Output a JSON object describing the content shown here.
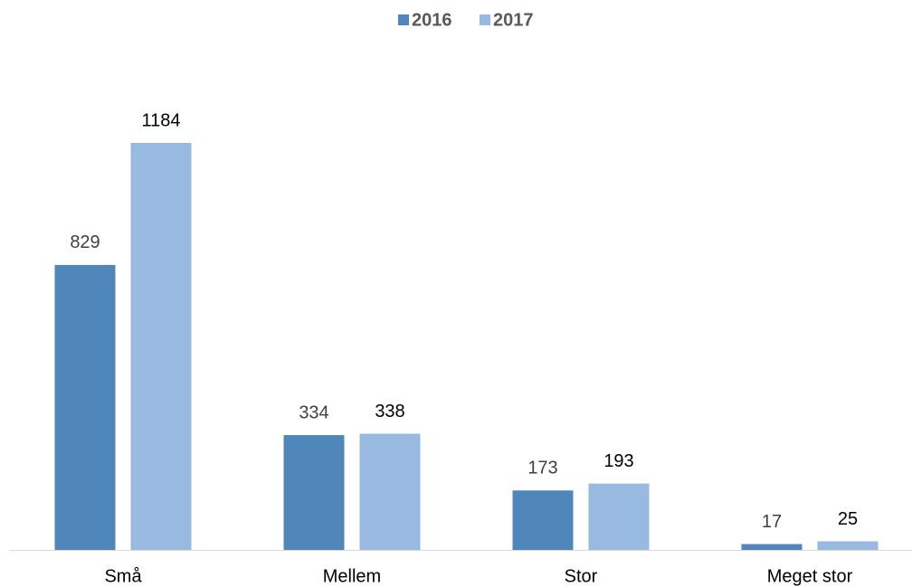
{
  "chart_data": {
    "type": "bar",
    "categories": [
      "Små",
      "Mellem",
      "Stor",
      "Meget stor"
    ],
    "series": [
      {
        "name": "2016",
        "color": "#4f87bb",
        "values": [
          829,
          334,
          173,
          17
        ]
      },
      {
        "name": "2017",
        "color": "#98b9e0",
        "values": [
          1184,
          338,
          193,
          25
        ]
      }
    ],
    "legend": "top"
  }
}
